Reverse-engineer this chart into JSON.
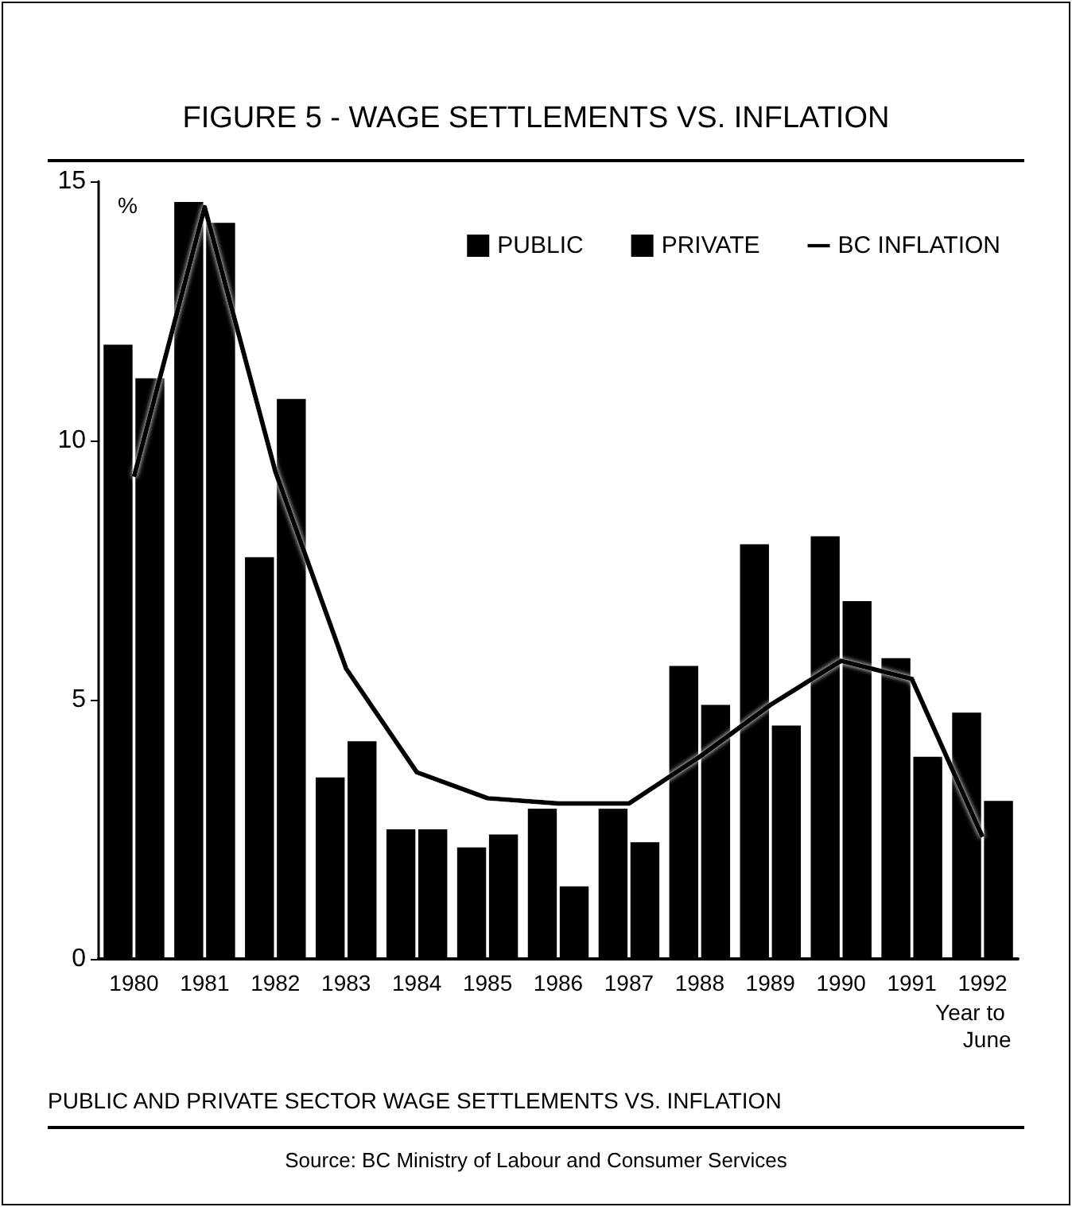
{
  "chart_data": {
    "type": "bar",
    "title": "FIGURE 5 - WAGE SETTLEMENTS VS. INFLATION",
    "ylabel": "%",
    "categories": [
      "1980",
      "1981",
      "1982",
      "1983",
      "1984",
      "1985",
      "1986",
      "1987",
      "1988",
      "1989",
      "1990",
      "1991",
      "1992"
    ],
    "series": [
      {
        "name": "PUBLIC",
        "color": "#000000",
        "values": [
          11.85,
          14.6,
          7.75,
          3.5,
          2.5,
          2.15,
          2.9,
          2.9,
          5.65,
          8.0,
          8.15,
          5.8,
          4.75
        ]
      },
      {
        "name": "PRIVATE",
        "color": "#000000",
        "values": [
          11.2,
          14.2,
          10.8,
          4.2,
          2.5,
          2.4,
          1.4,
          2.25,
          4.9,
          4.5,
          6.9,
          3.9,
          3.05
        ]
      },
      {
        "name": "BC INFLATION",
        "type": "line",
        "color": "#000000",
        "values": [
          9.3,
          14.5,
          9.4,
          5.6,
          3.6,
          3.1,
          3.0,
          3.0,
          3.9,
          4.9,
          5.75,
          5.4,
          2.35
        ]
      }
    ],
    "ylim": [
      0,
      15
    ],
    "yticks": [
      0,
      5,
      10,
      15
    ],
    "grid": false,
    "legend": "top right",
    "marker": "none",
    "annotations": [
      "Year to June",
      "PUBLIC AND PRIVATE SECTOR WAGE SETTLEMENTS VS. INFLATION",
      "Source: BC Ministry of Labour and Consumer Services"
    ]
  }
}
